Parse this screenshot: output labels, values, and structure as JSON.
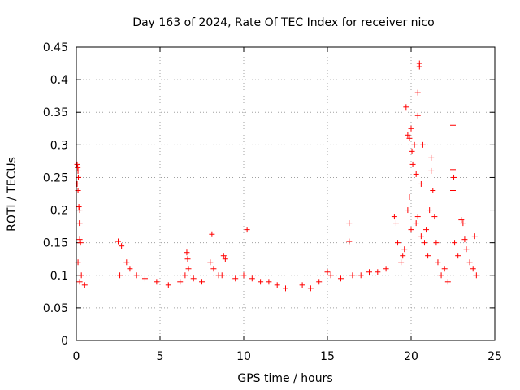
{
  "chart_data": {
    "type": "scatter",
    "title": "Day 163 of 2024, Rate Of TEC Index for receiver nico",
    "xlabel": "GPS time / hours",
    "ylabel": "ROTI / TECUs",
    "xlim": [
      0,
      25
    ],
    "ylim": [
      0,
      0.45
    ],
    "xticks": [
      0,
      5,
      10,
      15,
      20,
      25
    ],
    "yticks": [
      0,
      0.05,
      0.1,
      0.15,
      0.2,
      0.25,
      0.3,
      0.35,
      0.4,
      0.45
    ],
    "grid": true,
    "series": [
      {
        "name": "ROTI",
        "color": "#ff0000",
        "marker": "plus",
        "points": [
          [
            0.05,
            0.27
          ],
          [
            0.08,
            0.265
          ],
          [
            0.1,
            0.26
          ],
          [
            0.12,
            0.25
          ],
          [
            0.05,
            0.24
          ],
          [
            0.1,
            0.23
          ],
          [
            0.15,
            0.205
          ],
          [
            0.2,
            0.2
          ],
          [
            0.18,
            0.18
          ],
          [
            0.22,
            0.18
          ],
          [
            0.2,
            0.155
          ],
          [
            0.25,
            0.15
          ],
          [
            0.1,
            0.12
          ],
          [
            0.3,
            0.1
          ],
          [
            0.2,
            0.09
          ],
          [
            0.5,
            0.085
          ],
          [
            2.5,
            0.152
          ],
          [
            2.7,
            0.145
          ],
          [
            3.0,
            0.12
          ],
          [
            3.2,
            0.11
          ],
          [
            2.6,
            0.1
          ],
          [
            3.6,
            0.1
          ],
          [
            4.1,
            0.095
          ],
          [
            4.8,
            0.09
          ],
          [
            5.5,
            0.085
          ],
          [
            6.2,
            0.09
          ],
          [
            6.6,
            0.135
          ],
          [
            6.65,
            0.125
          ],
          [
            6.7,
            0.11
          ],
          [
            6.5,
            0.1
          ],
          [
            7.0,
            0.095
          ],
          [
            7.5,
            0.09
          ],
          [
            8.0,
            0.12
          ],
          [
            8.1,
            0.163
          ],
          [
            8.2,
            0.11
          ],
          [
            8.5,
            0.1
          ],
          [
            8.8,
            0.13
          ],
          [
            8.9,
            0.125
          ],
          [
            8.7,
            0.1
          ],
          [
            9.5,
            0.095
          ],
          [
            10.2,
            0.17
          ],
          [
            10.0,
            0.1
          ],
          [
            10.5,
            0.095
          ],
          [
            11.0,
            0.09
          ],
          [
            11.5,
            0.09
          ],
          [
            12.0,
            0.085
          ],
          [
            12.5,
            0.08
          ],
          [
            13.5,
            0.085
          ],
          [
            14.0,
            0.08
          ],
          [
            14.5,
            0.09
          ],
          [
            15.0,
            0.105
          ],
          [
            15.2,
            0.1
          ],
          [
            15.8,
            0.095
          ],
          [
            16.3,
            0.18
          ],
          [
            16.3,
            0.152
          ],
          [
            16.5,
            0.1
          ],
          [
            17.0,
            0.1
          ],
          [
            17.5,
            0.105
          ],
          [
            18.0,
            0.105
          ],
          [
            18.5,
            0.11
          ],
          [
            19.0,
            0.19
          ],
          [
            19.1,
            0.18
          ],
          [
            19.2,
            0.15
          ],
          [
            19.4,
            0.12
          ],
          [
            19.6,
            0.14
          ],
          [
            19.5,
            0.13
          ],
          [
            19.7,
            0.358
          ],
          [
            19.8,
            0.315
          ],
          [
            19.9,
            0.31
          ],
          [
            20.0,
            0.325
          ],
          [
            20.05,
            0.29
          ],
          [
            20.1,
            0.27
          ],
          [
            19.8,
            0.2
          ],
          [
            19.9,
            0.22
          ],
          [
            20.0,
            0.17
          ],
          [
            20.2,
            0.3
          ],
          [
            20.3,
            0.255
          ],
          [
            20.4,
            0.38
          ],
          [
            20.4,
            0.345
          ],
          [
            20.4,
            0.19
          ],
          [
            20.3,
            0.18
          ],
          [
            20.5,
            0.42
          ],
          [
            20.5,
            0.425
          ],
          [
            20.6,
            0.24
          ],
          [
            20.7,
            0.3
          ],
          [
            20.6,
            0.16
          ],
          [
            20.8,
            0.15
          ],
          [
            20.9,
            0.17
          ],
          [
            21.0,
            0.13
          ],
          [
            21.2,
            0.28
          ],
          [
            21.2,
            0.26
          ],
          [
            21.3,
            0.23
          ],
          [
            21.1,
            0.2
          ],
          [
            21.4,
            0.19
          ],
          [
            21.5,
            0.15
          ],
          [
            21.6,
            0.12
          ],
          [
            21.8,
            0.1
          ],
          [
            22.0,
            0.11
          ],
          [
            22.2,
            0.09
          ],
          [
            22.5,
            0.33
          ],
          [
            22.5,
            0.262
          ],
          [
            22.55,
            0.25
          ],
          [
            22.5,
            0.23
          ],
          [
            22.6,
            0.15
          ],
          [
            22.8,
            0.13
          ],
          [
            23.0,
            0.185
          ],
          [
            23.1,
            0.18
          ],
          [
            23.2,
            0.155
          ],
          [
            23.3,
            0.14
          ],
          [
            23.5,
            0.12
          ],
          [
            23.7,
            0.11
          ],
          [
            23.8,
            0.16
          ],
          [
            23.9,
            0.1
          ]
        ]
      }
    ]
  }
}
